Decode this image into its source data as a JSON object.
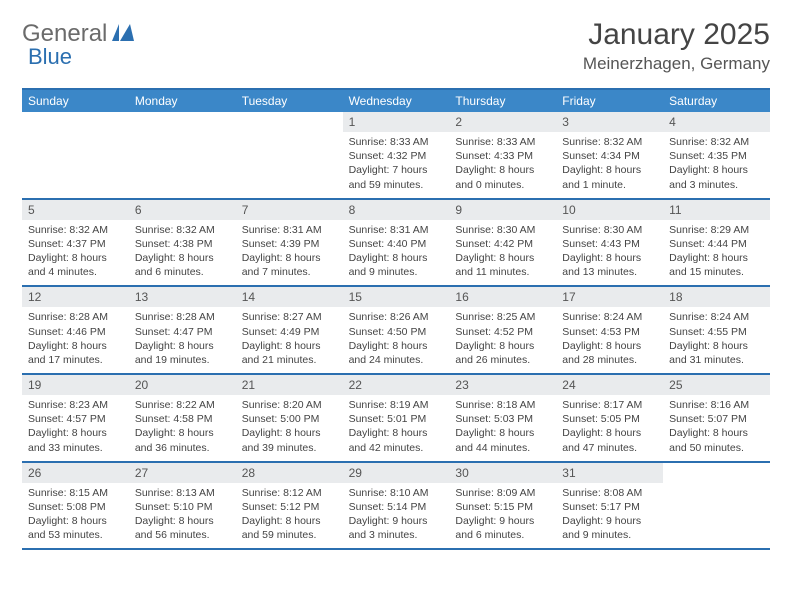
{
  "brand": {
    "part1": "General",
    "part2": "Blue"
  },
  "title": "January 2025",
  "location": "Meinerzhagen, Germany",
  "colors": {
    "accent": "#2b6fb0",
    "header_bg": "#3b87c8",
    "daynum_bg": "#e9ebed",
    "text": "#444444"
  },
  "weekdays": [
    "Sunday",
    "Monday",
    "Tuesday",
    "Wednesday",
    "Thursday",
    "Friday",
    "Saturday"
  ],
  "weeks": [
    [
      {
        "n": "",
        "sr": "",
        "ss": "",
        "dl": ""
      },
      {
        "n": "",
        "sr": "",
        "ss": "",
        "dl": ""
      },
      {
        "n": "",
        "sr": "",
        "ss": "",
        "dl": ""
      },
      {
        "n": "1",
        "sr": "Sunrise: 8:33 AM",
        "ss": "Sunset: 4:32 PM",
        "dl": "Daylight: 7 hours and 59 minutes."
      },
      {
        "n": "2",
        "sr": "Sunrise: 8:33 AM",
        "ss": "Sunset: 4:33 PM",
        "dl": "Daylight: 8 hours and 0 minutes."
      },
      {
        "n": "3",
        "sr": "Sunrise: 8:32 AM",
        "ss": "Sunset: 4:34 PM",
        "dl": "Daylight: 8 hours and 1 minute."
      },
      {
        "n": "4",
        "sr": "Sunrise: 8:32 AM",
        "ss": "Sunset: 4:35 PM",
        "dl": "Daylight: 8 hours and 3 minutes."
      }
    ],
    [
      {
        "n": "5",
        "sr": "Sunrise: 8:32 AM",
        "ss": "Sunset: 4:37 PM",
        "dl": "Daylight: 8 hours and 4 minutes."
      },
      {
        "n": "6",
        "sr": "Sunrise: 8:32 AM",
        "ss": "Sunset: 4:38 PM",
        "dl": "Daylight: 8 hours and 6 minutes."
      },
      {
        "n": "7",
        "sr": "Sunrise: 8:31 AM",
        "ss": "Sunset: 4:39 PM",
        "dl": "Daylight: 8 hours and 7 minutes."
      },
      {
        "n": "8",
        "sr": "Sunrise: 8:31 AM",
        "ss": "Sunset: 4:40 PM",
        "dl": "Daylight: 8 hours and 9 minutes."
      },
      {
        "n": "9",
        "sr": "Sunrise: 8:30 AM",
        "ss": "Sunset: 4:42 PM",
        "dl": "Daylight: 8 hours and 11 minutes."
      },
      {
        "n": "10",
        "sr": "Sunrise: 8:30 AM",
        "ss": "Sunset: 4:43 PM",
        "dl": "Daylight: 8 hours and 13 minutes."
      },
      {
        "n": "11",
        "sr": "Sunrise: 8:29 AM",
        "ss": "Sunset: 4:44 PM",
        "dl": "Daylight: 8 hours and 15 minutes."
      }
    ],
    [
      {
        "n": "12",
        "sr": "Sunrise: 8:28 AM",
        "ss": "Sunset: 4:46 PM",
        "dl": "Daylight: 8 hours and 17 minutes."
      },
      {
        "n": "13",
        "sr": "Sunrise: 8:28 AM",
        "ss": "Sunset: 4:47 PM",
        "dl": "Daylight: 8 hours and 19 minutes."
      },
      {
        "n": "14",
        "sr": "Sunrise: 8:27 AM",
        "ss": "Sunset: 4:49 PM",
        "dl": "Daylight: 8 hours and 21 minutes."
      },
      {
        "n": "15",
        "sr": "Sunrise: 8:26 AM",
        "ss": "Sunset: 4:50 PM",
        "dl": "Daylight: 8 hours and 24 minutes."
      },
      {
        "n": "16",
        "sr": "Sunrise: 8:25 AM",
        "ss": "Sunset: 4:52 PM",
        "dl": "Daylight: 8 hours and 26 minutes."
      },
      {
        "n": "17",
        "sr": "Sunrise: 8:24 AM",
        "ss": "Sunset: 4:53 PM",
        "dl": "Daylight: 8 hours and 28 minutes."
      },
      {
        "n": "18",
        "sr": "Sunrise: 8:24 AM",
        "ss": "Sunset: 4:55 PM",
        "dl": "Daylight: 8 hours and 31 minutes."
      }
    ],
    [
      {
        "n": "19",
        "sr": "Sunrise: 8:23 AM",
        "ss": "Sunset: 4:57 PM",
        "dl": "Daylight: 8 hours and 33 minutes."
      },
      {
        "n": "20",
        "sr": "Sunrise: 8:22 AM",
        "ss": "Sunset: 4:58 PM",
        "dl": "Daylight: 8 hours and 36 minutes."
      },
      {
        "n": "21",
        "sr": "Sunrise: 8:20 AM",
        "ss": "Sunset: 5:00 PM",
        "dl": "Daylight: 8 hours and 39 minutes."
      },
      {
        "n": "22",
        "sr": "Sunrise: 8:19 AM",
        "ss": "Sunset: 5:01 PM",
        "dl": "Daylight: 8 hours and 42 minutes."
      },
      {
        "n": "23",
        "sr": "Sunrise: 8:18 AM",
        "ss": "Sunset: 5:03 PM",
        "dl": "Daylight: 8 hours and 44 minutes."
      },
      {
        "n": "24",
        "sr": "Sunrise: 8:17 AM",
        "ss": "Sunset: 5:05 PM",
        "dl": "Daylight: 8 hours and 47 minutes."
      },
      {
        "n": "25",
        "sr": "Sunrise: 8:16 AM",
        "ss": "Sunset: 5:07 PM",
        "dl": "Daylight: 8 hours and 50 minutes."
      }
    ],
    [
      {
        "n": "26",
        "sr": "Sunrise: 8:15 AM",
        "ss": "Sunset: 5:08 PM",
        "dl": "Daylight: 8 hours and 53 minutes."
      },
      {
        "n": "27",
        "sr": "Sunrise: 8:13 AM",
        "ss": "Sunset: 5:10 PM",
        "dl": "Daylight: 8 hours and 56 minutes."
      },
      {
        "n": "28",
        "sr": "Sunrise: 8:12 AM",
        "ss": "Sunset: 5:12 PM",
        "dl": "Daylight: 8 hours and 59 minutes."
      },
      {
        "n": "29",
        "sr": "Sunrise: 8:10 AM",
        "ss": "Sunset: 5:14 PM",
        "dl": "Daylight: 9 hours and 3 minutes."
      },
      {
        "n": "30",
        "sr": "Sunrise: 8:09 AM",
        "ss": "Sunset: 5:15 PM",
        "dl": "Daylight: 9 hours and 6 minutes."
      },
      {
        "n": "31",
        "sr": "Sunrise: 8:08 AM",
        "ss": "Sunset: 5:17 PM",
        "dl": "Daylight: 9 hours and 9 minutes."
      },
      {
        "n": "",
        "sr": "",
        "ss": "",
        "dl": ""
      }
    ]
  ]
}
